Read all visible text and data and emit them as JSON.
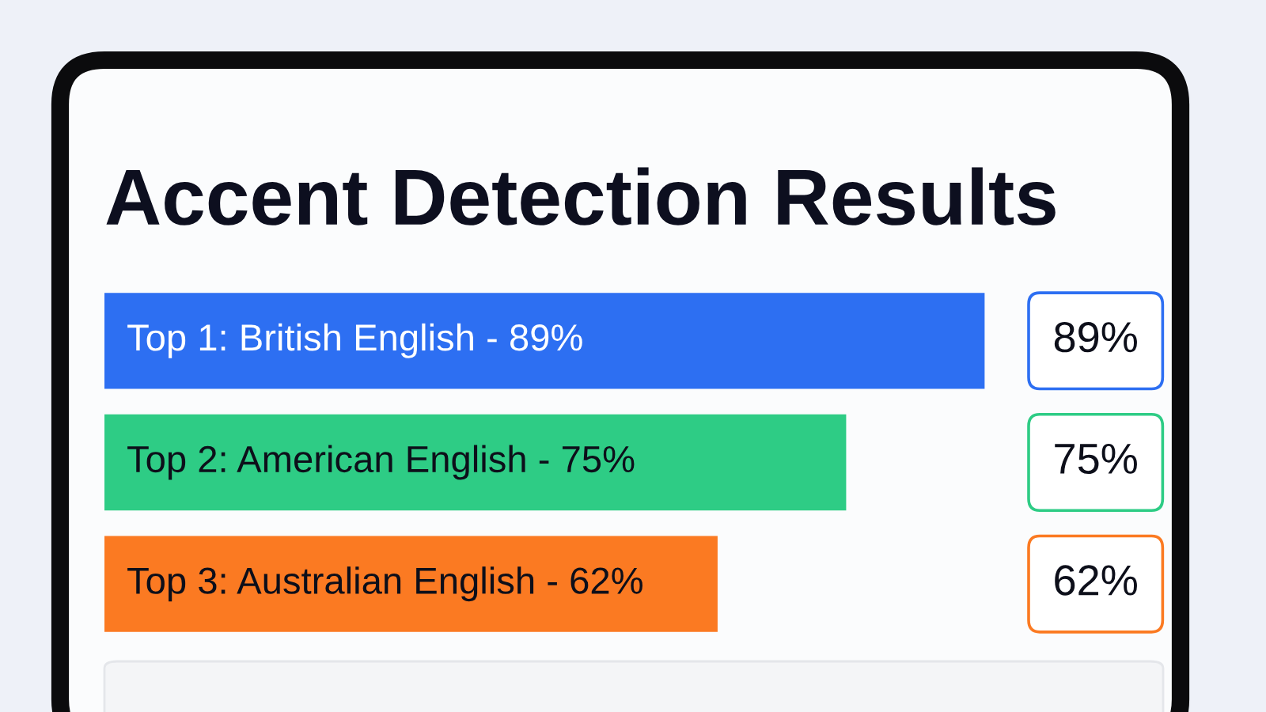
{
  "chart_data": {
    "type": "bar",
    "orientation": "horizontal",
    "title": "Accent Detection Results",
    "categories": [
      "Top 1: British English - 89%",
      "Top 2: American English - 75%",
      "Top 3: Australian English - 62%"
    ],
    "values": [
      89,
      75,
      62
    ],
    "colors": [
      "#2d6ff2",
      "#2ecc85",
      "#fb7a22"
    ],
    "value_labels": [
      "89%",
      "75%",
      "62%"
    ]
  }
}
